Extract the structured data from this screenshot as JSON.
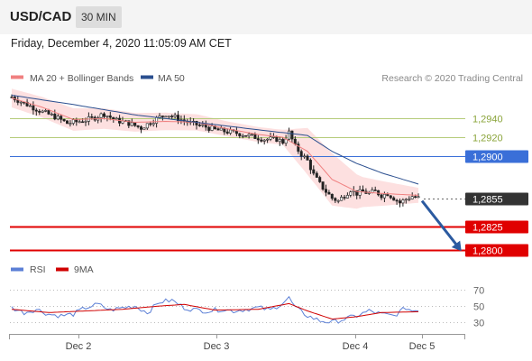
{
  "header": {
    "symbol": "USD/CAD",
    "timeframe": "30 MIN",
    "datetime": "Friday, December 4, 2020 11:05:09 AM CET"
  },
  "colors": {
    "bollinger": "#f08080",
    "bollinger_fill": "#fde0e0",
    "ma50": "#2b4f8f",
    "candle": "#222222",
    "price_line": "#3a6fd8",
    "resistance": "#b5cc7a",
    "support": "#e00000",
    "current": "#333333",
    "arrow": "#2b5aa0",
    "rsi": "#5b7fd6",
    "rsi_ma": "#d00000"
  },
  "chart_data": [
    {
      "type": "candlestick",
      "legend": [
        {
          "name": "MA 20 + Bollinger Bands",
          "color": "#f08080"
        },
        {
          "name": "MA 50",
          "color": "#2b4f8f"
        }
      ],
      "legend_position": "top-left",
      "copyright": "Research © 2020 Trading Central",
      "x_ticks": [
        "Dec 2",
        "Dec 3",
        "Dec 4",
        "Dec 5"
      ],
      "y_range": [
        1.2787,
        1.2978
      ],
      "levels": [
        {
          "value": 1.294,
          "label": "1,2940",
          "kind": "resistance"
        },
        {
          "value": 1.292,
          "label": "1,2920",
          "kind": "resistance"
        },
        {
          "value": 1.29,
          "label": "1,2900",
          "kind": "price"
        },
        {
          "value": 1.2855,
          "label": "1,2855",
          "kind": "current"
        },
        {
          "value": 1.2825,
          "label": "1,2825",
          "kind": "support"
        },
        {
          "value": 1.28,
          "label": "1,2800",
          "kind": "support"
        }
      ],
      "anchors": [
        {
          "i": 0,
          "v": 1.2963
        },
        {
          "i": 5,
          "v": 1.2955
        },
        {
          "i": 10,
          "v": 1.2947
        },
        {
          "i": 14,
          "v": 1.2942
        },
        {
          "i": 18,
          "v": 1.2935
        },
        {
          "i": 22,
          "v": 1.2937
        },
        {
          "i": 26,
          "v": 1.294
        },
        {
          "i": 30,
          "v": 1.2945
        },
        {
          "i": 34,
          "v": 1.2938
        },
        {
          "i": 38,
          "v": 1.2935
        },
        {
          "i": 42,
          "v": 1.293
        },
        {
          "i": 46,
          "v": 1.2938
        },
        {
          "i": 50,
          "v": 1.2945
        },
        {
          "i": 54,
          "v": 1.294
        },
        {
          "i": 58,
          "v": 1.2935
        },
        {
          "i": 62,
          "v": 1.2932
        },
        {
          "i": 66,
          "v": 1.2928
        },
        {
          "i": 70,
          "v": 1.2926
        },
        {
          "i": 74,
          "v": 1.2924
        },
        {
          "i": 78,
          "v": 1.2921
        },
        {
          "i": 82,
          "v": 1.2918
        },
        {
          "i": 86,
          "v": 1.2918
        },
        {
          "i": 88,
          "v": 1.2915
        },
        {
          "i": 90,
          "v": 1.2925
        },
        {
          "i": 92,
          "v": 1.291
        },
        {
          "i": 94,
          "v": 1.2902
        },
        {
          "i": 96,
          "v": 1.2895
        },
        {
          "i": 98,
          "v": 1.288
        },
        {
          "i": 100,
          "v": 1.287
        },
        {
          "i": 102,
          "v": 1.2862
        },
        {
          "i": 104,
          "v": 1.2855
        },
        {
          "i": 106,
          "v": 1.2852
        },
        {
          "i": 108,
          "v": 1.2858
        },
        {
          "i": 110,
          "v": 1.2864
        },
        {
          "i": 112,
          "v": 1.286
        },
        {
          "i": 114,
          "v": 1.2862
        },
        {
          "i": 116,
          "v": 1.286
        },
        {
          "i": 118,
          "v": 1.2862
        },
        {
          "i": 120,
          "v": 1.2858
        },
        {
          "i": 122,
          "v": 1.286
        },
        {
          "i": 124,
          "v": 1.2855
        },
        {
          "i": 126,
          "v": 1.285
        },
        {
          "i": 128,
          "v": 1.2854
        },
        {
          "i": 130,
          "v": 1.2857
        },
        {
          "i": 132,
          "v": 1.2855
        }
      ],
      "ma20": [
        {
          "i": 0,
          "v": 1.2962
        },
        {
          "i": 10,
          "v": 1.2952
        },
        {
          "i": 20,
          "v": 1.2939
        },
        {
          "i": 30,
          "v": 1.294
        },
        {
          "i": 40,
          "v": 1.2936
        },
        {
          "i": 50,
          "v": 1.2937
        },
        {
          "i": 60,
          "v": 1.2936
        },
        {
          "i": 70,
          "v": 1.2929
        },
        {
          "i": 80,
          "v": 1.2923
        },
        {
          "i": 88,
          "v": 1.292
        },
        {
          "i": 96,
          "v": 1.2905
        },
        {
          "i": 104,
          "v": 1.2875
        },
        {
          "i": 112,
          "v": 1.2862
        },
        {
          "i": 120,
          "v": 1.286
        },
        {
          "i": 132,
          "v": 1.2858
        }
      ],
      "ma50": [
        {
          "i": 0,
          "v": 1.2965
        },
        {
          "i": 20,
          "v": 1.2955
        },
        {
          "i": 40,
          "v": 1.2944
        },
        {
          "i": 60,
          "v": 1.2936
        },
        {
          "i": 80,
          "v": 1.2928
        },
        {
          "i": 96,
          "v": 1.2922
        },
        {
          "i": 104,
          "v": 1.2905
        },
        {
          "i": 112,
          "v": 1.2892
        },
        {
          "i": 120,
          "v": 1.2882
        },
        {
          "i": 132,
          "v": 1.287
        }
      ],
      "bb_width": [
        {
          "i": 0,
          "v": 0.001
        },
        {
          "i": 20,
          "v": 0.0012
        },
        {
          "i": 40,
          "v": 0.001
        },
        {
          "i": 70,
          "v": 0.0008
        },
        {
          "i": 88,
          "v": 0.0008
        },
        {
          "i": 96,
          "v": 0.0025
        },
        {
          "i": 104,
          "v": 0.0028
        },
        {
          "i": 114,
          "v": 0.0016
        },
        {
          "i": 132,
          "v": 0.0008
        }
      ]
    },
    {
      "type": "line",
      "legend": [
        {
          "name": "RSI",
          "color": "#5b7fd6"
        },
        {
          "name": "9MA",
          "color": "#d00000"
        }
      ],
      "legend_position": "top-left",
      "y_range": [
        18,
        80
      ],
      "y_ticks": [
        30,
        50,
        70
      ],
      "rsi_anchors": [
        {
          "i": 0,
          "v": 48
        },
        {
          "i": 4,
          "v": 42
        },
        {
          "i": 8,
          "v": 46
        },
        {
          "i": 12,
          "v": 40
        },
        {
          "i": 16,
          "v": 38
        },
        {
          "i": 20,
          "v": 40
        },
        {
          "i": 24,
          "v": 48
        },
        {
          "i": 28,
          "v": 52
        },
        {
          "i": 32,
          "v": 45
        },
        {
          "i": 36,
          "v": 48
        },
        {
          "i": 40,
          "v": 50
        },
        {
          "i": 44,
          "v": 42
        },
        {
          "i": 48,
          "v": 55
        },
        {
          "i": 52,
          "v": 57
        },
        {
          "i": 56,
          "v": 48
        },
        {
          "i": 60,
          "v": 45
        },
        {
          "i": 64,
          "v": 44
        },
        {
          "i": 68,
          "v": 46
        },
        {
          "i": 72,
          "v": 44
        },
        {
          "i": 76,
          "v": 46
        },
        {
          "i": 80,
          "v": 48
        },
        {
          "i": 84,
          "v": 45
        },
        {
          "i": 88,
          "v": 54
        },
        {
          "i": 90,
          "v": 60
        },
        {
          "i": 92,
          "v": 48
        },
        {
          "i": 96,
          "v": 38
        },
        {
          "i": 100,
          "v": 32
        },
        {
          "i": 104,
          "v": 30
        },
        {
          "i": 108,
          "v": 34
        },
        {
          "i": 112,
          "v": 38
        },
        {
          "i": 116,
          "v": 44
        },
        {
          "i": 120,
          "v": 40
        },
        {
          "i": 124,
          "v": 38
        },
        {
          "i": 128,
          "v": 48
        },
        {
          "i": 130,
          "v": 44
        },
        {
          "i": 132,
          "v": 46
        }
      ],
      "ma_anchors": [
        {
          "i": 0,
          "v": 46
        },
        {
          "i": 12,
          "v": 42
        },
        {
          "i": 24,
          "v": 44
        },
        {
          "i": 36,
          "v": 46
        },
        {
          "i": 48,
          "v": 50
        },
        {
          "i": 56,
          "v": 52
        },
        {
          "i": 66,
          "v": 45
        },
        {
          "i": 80,
          "v": 46
        },
        {
          "i": 90,
          "v": 53
        },
        {
          "i": 96,
          "v": 44
        },
        {
          "i": 104,
          "v": 34
        },
        {
          "i": 112,
          "v": 37
        },
        {
          "i": 120,
          "v": 42
        },
        {
          "i": 132,
          "v": 43
        }
      ]
    }
  ]
}
